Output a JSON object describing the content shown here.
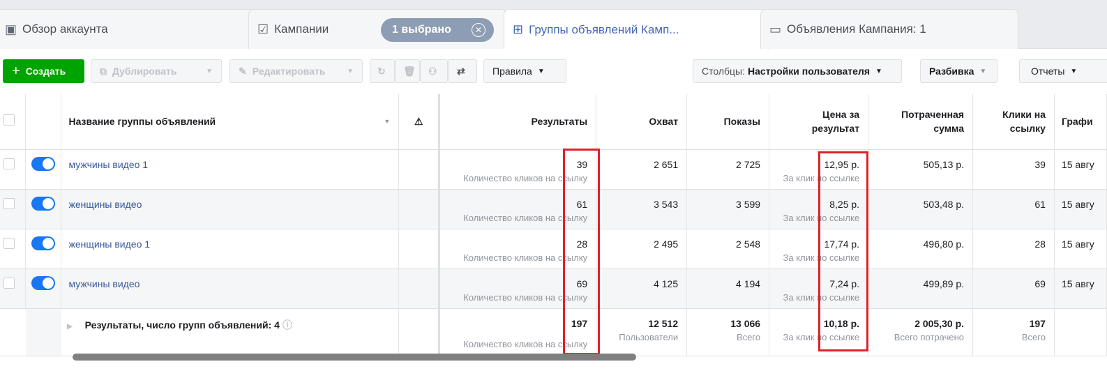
{
  "tabs": [
    {
      "label": "Обзор аккаунта",
      "icon": "account-overview-icon"
    },
    {
      "label": "Кампании",
      "icon": "campaigns-folder-icon",
      "selection": "1 выбрано"
    },
    {
      "label": "Группы объявлений Камп...",
      "icon": "ad-sets-grid-icon",
      "active": true
    },
    {
      "label": "Объявления Кампания: 1",
      "icon": "ads-icon"
    }
  ],
  "toolbar": {
    "create": "Создать",
    "duplicate": "Дублировать",
    "edit": "Редактировать",
    "rules": "Правила",
    "columns_prefix": "Столбцы:",
    "columns_value": "Настройки пользователя",
    "breakdown": "Разбивка",
    "reports": "Отчеты"
  },
  "table": {
    "headers": {
      "name": "Название группы объявлений",
      "results": "Результаты",
      "reach": "Охват",
      "impressions": "Показы",
      "cost": "Цена за результат",
      "spent": "Потраченная сумма",
      "clicks": "Клики на ссылку",
      "schedule": "Графи"
    },
    "rows": [
      {
        "name": "мужчины видео 1",
        "results": "39",
        "results_sub": "Количество кликов на ссылку",
        "reach": "2 651",
        "impressions": "2 725",
        "cost": "12,95 р.",
        "cost_sub": "За клик по ссылке",
        "spent": "505,13 р.",
        "clicks": "39",
        "schedule": "15 авгу"
      },
      {
        "name": "женщины видео",
        "results": "61",
        "results_sub": "Количество кликов на ссылку",
        "reach": "3 543",
        "impressions": "3 599",
        "cost": "8,25 р.",
        "cost_sub": "За клик по ссылке",
        "spent": "503,48 р.",
        "clicks": "61",
        "schedule": "15 авгу"
      },
      {
        "name": "женщины видео 1",
        "results": "28",
        "results_sub": "Количество кликов на ссылку",
        "reach": "2 495",
        "impressions": "2 548",
        "cost": "17,74 р.",
        "cost_sub": "За клик по ссылке",
        "spent": "496,80 р.",
        "clicks": "28",
        "schedule": "15 авгу"
      },
      {
        "name": "мужчины видео",
        "results": "69",
        "results_sub": "Количество кликов на ссылку",
        "reach": "4 125",
        "impressions": "4 194",
        "cost": "7,24 р.",
        "cost_sub": "За клик по ссылке",
        "spent": "499,89 р.",
        "clicks": "69",
        "schedule": "15 авгу"
      }
    ],
    "total": {
      "label": "Результаты, число групп объявлений: 4",
      "results": "197",
      "results_sub": "Количество кликов на ссылку",
      "reach": "12 512",
      "reach_sub": "Пользователи",
      "impressions": "13 066",
      "impressions_sub": "Всего",
      "cost": "10,18 р.",
      "cost_sub": "За клик по ссылке",
      "spent": "2 005,30 р.",
      "spent_sub": "Всего потрачено",
      "clicks": "197",
      "clicks_sub": "Всего"
    }
  },
  "colors": {
    "accent": "#4267b2",
    "create": "#00a400",
    "highlight": "#e0202a",
    "toggle": "#1877f2"
  }
}
